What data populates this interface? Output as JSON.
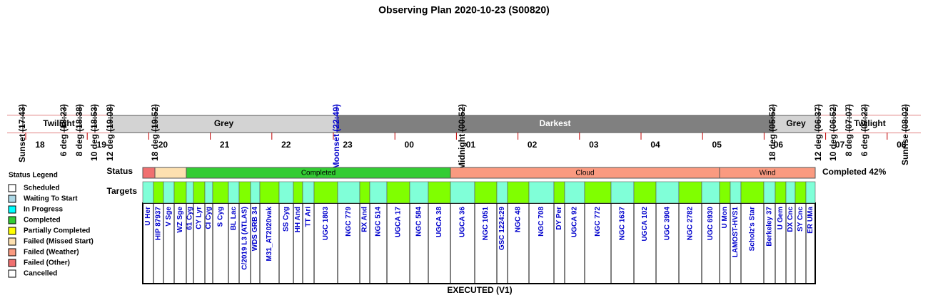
{
  "title": "Observing Plan 2020-10-23 (S00820)",
  "events": [
    "Sunset (17:43)",
    "6 deg (18:23)",
    "8 deg (18:38)",
    "10 deg (18:53)",
    "12 deg (19:08)",
    "18 deg (19:52)",
    "Moonset (22:49)",
    "Midnight (00:52)",
    "18 deg (05:52)",
    "12 deg (06:37)",
    "10 deg (06:52)",
    "8 deg (07:07)",
    "6 deg (07:22)",
    "Sunrise (08:02)"
  ],
  "bands": [
    "Twilight",
    "Grey",
    "Darkest",
    "Grey",
    "Twilight"
  ],
  "hours": [
    "18",
    "19",
    "20",
    "21",
    "22",
    "23",
    "00",
    "01",
    "02",
    "03",
    "04",
    "05",
    "06",
    "07",
    "08"
  ],
  "status_label": "Status",
  "status_segments": [
    "Completed",
    "Cloud",
    "Wind"
  ],
  "completion": "Completed 42%",
  "targets_label": "Targets",
  "targets": [
    "U Her",
    "HIP 87937",
    "V Sge",
    "WZ Sge",
    "61 Cyg",
    "CY Lyr",
    "CI Cyg",
    "S Cyg",
    "BL Lac",
    "C/2019 L3 (ATLAS)",
    "WDS GRB 34",
    "M31_AT2020vak",
    "SS Cyg",
    "HH And",
    "TT Ari",
    "UGC 1803",
    "NGC 779",
    "RX And",
    "NGC 514",
    "UGCA 17",
    "NGC 584",
    "UGCA 38",
    "UGCA 36",
    "NGC 1051",
    "GSC 1224:29",
    "NGC 48",
    "NGC 708",
    "DY Per",
    "UGCA 92",
    "NGC 772",
    "NGC 1637",
    "UGCA 102",
    "UGC 3904",
    "NGC 2782",
    "UGC 6930",
    "U Mon",
    "LAMOST-HVS1",
    "Scholz's Star",
    "Berkeley 37",
    "U Gem",
    "DX Cnc",
    "SY Cnc",
    "ER UMa"
  ],
  "footer": "EXECUTED (V1)",
  "legend": {
    "title": "Status Legend",
    "items": [
      "Scheduled",
      "Waiting To Start",
      "In Progress",
      "Completed",
      "Partially Completed",
      "Failed (Missed Start)",
      "Failed (Weather)",
      "Failed (Other)",
      "Cancelled"
    ]
  }
}
